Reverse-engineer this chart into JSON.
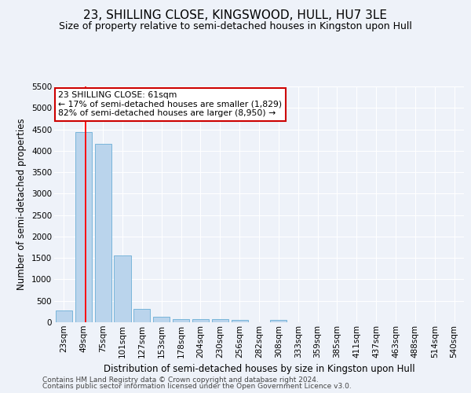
{
  "title": "23, SHILLING CLOSE, KINGSWOOD, HULL, HU7 3LE",
  "subtitle": "Size of property relative to semi-detached houses in Kingston upon Hull",
  "xlabel": "Distribution of semi-detached houses by size in Kingston upon Hull",
  "ylabel": "Number of semi-detached properties",
  "footer1": "Contains HM Land Registry data © Crown copyright and database right 2024.",
  "footer2": "Contains public sector information licensed under the Open Government Licence v3.0.",
  "bin_labels": [
    "23sqm",
    "49sqm",
    "75sqm",
    "101sqm",
    "127sqm",
    "153sqm",
    "178sqm",
    "204sqm",
    "230sqm",
    "256sqm",
    "282sqm",
    "308sqm",
    "333sqm",
    "359sqm",
    "385sqm",
    "411sqm",
    "437sqm",
    "463sqm",
    "488sqm",
    "514sqm",
    "540sqm"
  ],
  "bar_values": [
    270,
    4440,
    4160,
    1560,
    315,
    120,
    80,
    70,
    65,
    60,
    0,
    60,
    0,
    0,
    0,
    0,
    0,
    0,
    0,
    0,
    0
  ],
  "bar_color": "#bad4ec",
  "bar_edgecolor": "#6aaed6",
  "red_line_color": "#ff0000",
  "annotation_text": "23 SHILLING CLOSE: 61sqm\n← 17% of semi-detached houses are smaller (1,829)\n82% of semi-detached houses are larger (8,950) →",
  "annotation_box_edgecolor": "#cc0000",
  "ylim": [
    0,
    5500
  ],
  "yticks": [
    0,
    500,
    1000,
    1500,
    2000,
    2500,
    3000,
    3500,
    4000,
    4500,
    5000,
    5500
  ],
  "bg_color": "#eef2f9",
  "grid_color": "#ffffff",
  "title_fontsize": 11,
  "subtitle_fontsize": 9,
  "axis_label_fontsize": 8.5,
  "tick_fontsize": 7.5,
  "footer_fontsize": 6.5
}
